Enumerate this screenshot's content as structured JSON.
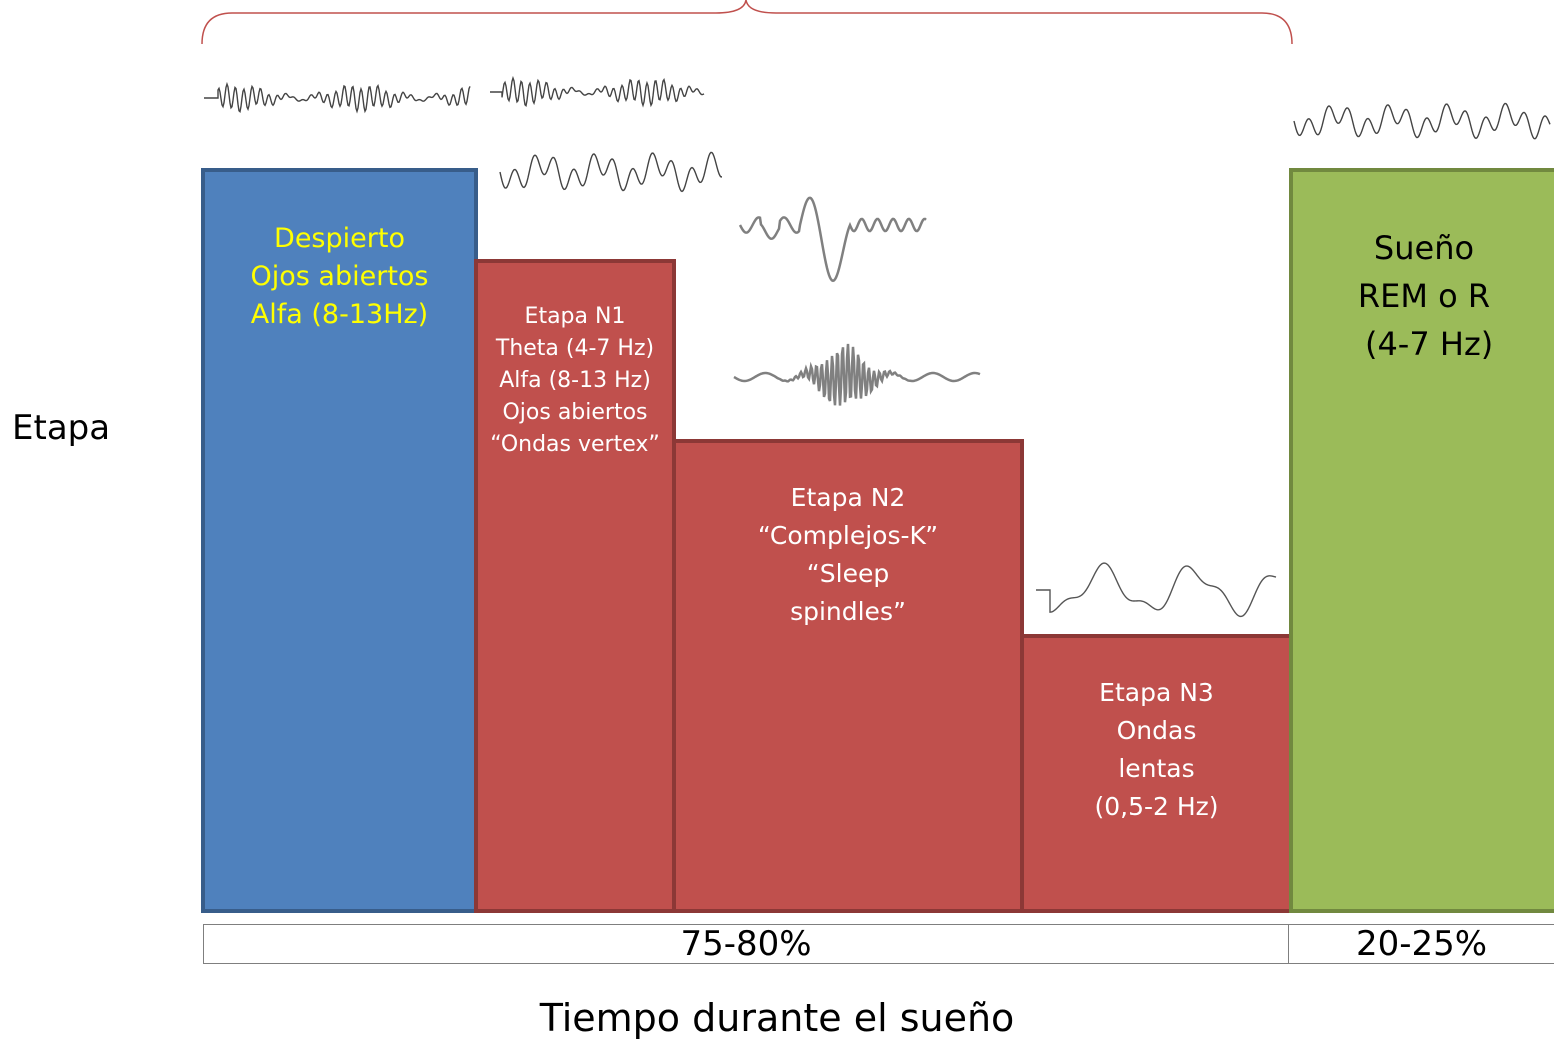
{
  "axis": {
    "y_label": "Etapa",
    "x_label": "Tiempo durante el sueño"
  },
  "stages": {
    "awake": {
      "lines": [
        "Despierto",
        "Ojos abiertos",
        "Alfa (8-13Hz)"
      ],
      "color": "#4f81bd",
      "text_color": "#ffff00"
    },
    "n1": {
      "lines": [
        "Etapa N1",
        "Theta (4-7 Hz)",
        "Alfa (8-13 Hz)",
        "Ojos abiertos",
        "“Ondas vertex”"
      ],
      "color": "#c0504d",
      "text_color": "#ffffff"
    },
    "n2": {
      "lines": [
        "Etapa N2",
        "“Complejos-K”",
        "“Sleep",
        "spindles”"
      ],
      "color": "#c0504d",
      "text_color": "#ffffff"
    },
    "n3": {
      "lines": [
        "Etapa N3",
        "Ondas",
        "lentas",
        "(0,5-2 Hz)"
      ],
      "color": "#c0504d",
      "text_color": "#ffffff"
    },
    "rem": {
      "lines": [
        "Sueño",
        "REM o R",
        " (4-7 Hz)"
      ],
      "color": "#9bbb59",
      "text_color": "#000000"
    }
  },
  "proportions": {
    "nrem": "75-80%",
    "rem": "20-25%"
  },
  "waveforms": [
    "alpha-wave",
    "alpha-wave",
    "theta-wave",
    "k-complex-wave",
    "sleep-spindle-wave",
    "slow-wave",
    "rem-theta-wave"
  ]
}
